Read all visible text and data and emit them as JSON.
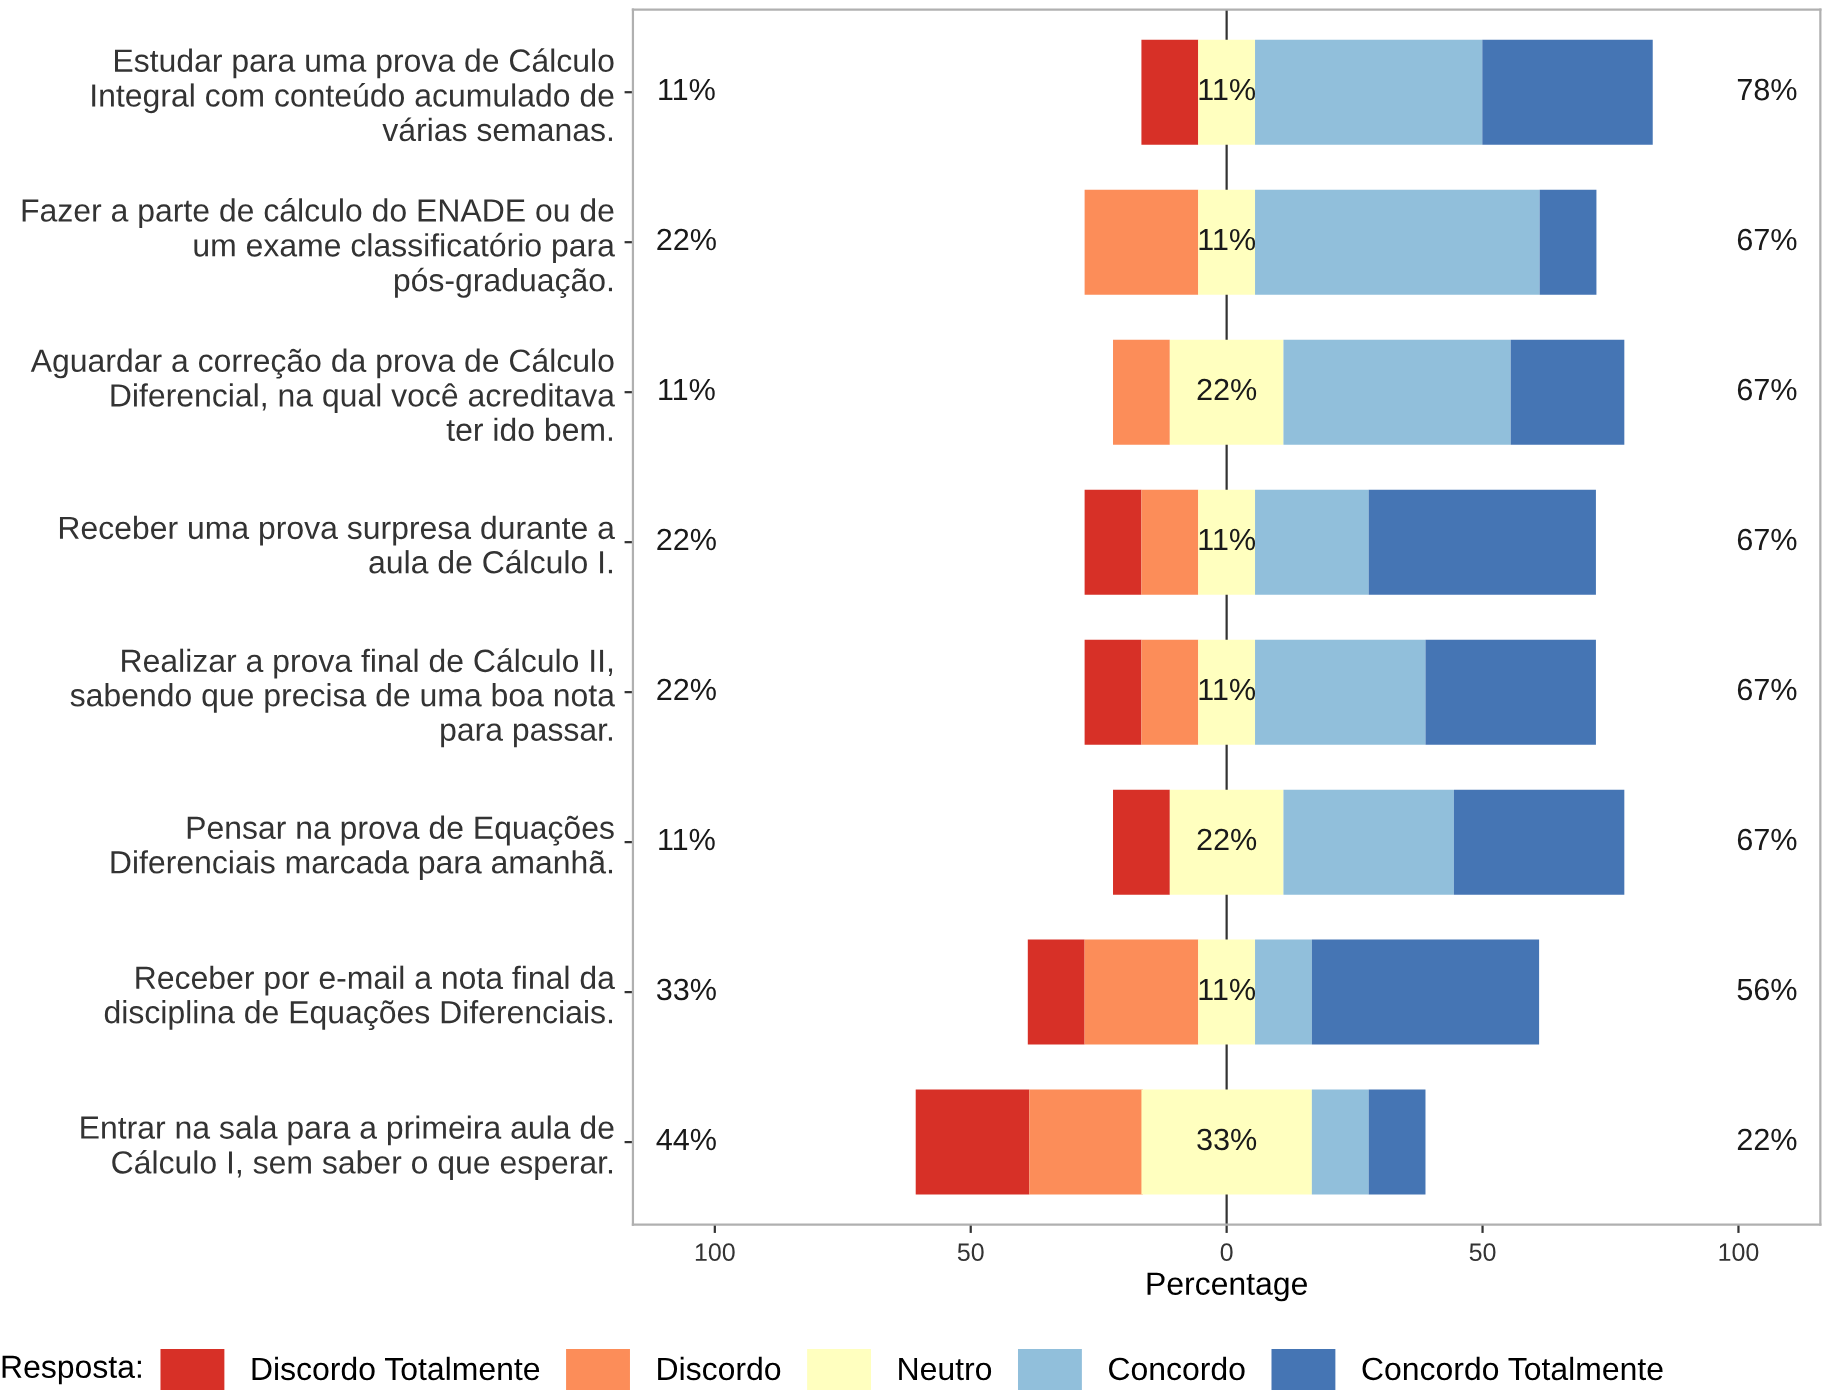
{
  "chart_data": {
    "type": "bar",
    "orientation": "horizontal",
    "stacked": true,
    "categories": [
      "Estudar para uma prova de Cálculo\nIntegral com conteúdo acumulado de\nvárias semanas.",
      "Fazer a parte de cálculo do ENADE ou de\num exame classificatório para\npós-graduação.",
      "Aguardar a correção da prova de Cálculo\nDiferencial, na qual você acreditava\nter ido bem.",
      "Receber uma prova surpresa durante a\naula de Cálculo I.",
      "Realizar a prova final de Cálculo II,\nsabendo que precisa de uma boa nota\npara passar.",
      "Pensar na prova de Equações\nDiferenciais marcada para amanhã.",
      "Receber por e-mail a nota final da\ndisciplina de Equações Diferenciais.",
      "Entrar na sala para a primeira aula de\nCálculo I, sem saber o que esperar."
    ],
    "series": [
      {
        "name": "Discordo Totalmente",
        "color": "#d73027",
        "values": [
          11.1,
          null,
          null,
          11.1,
          11.1,
          11.1,
          11.1,
          22.2
        ],
        "base": [
          -16.65,
          null,
          null,
          -27.75,
          -27.75,
          -22.2,
          -38.85,
          -60.75
        ]
      },
      {
        "name": "Discordo",
        "color": "#fc8d59",
        "values": [
          null,
          22.2,
          11.1,
          11.1,
          11.1,
          null,
          22.2,
          22.2
        ],
        "base": [
          null,
          -27.75,
          -22.2,
          -16.65,
          -16.65,
          null,
          -27.75,
          -38.55
        ]
      },
      {
        "name": "Neutro",
        "color": "#ffffbf",
        "values": [
          11.1,
          11.1,
          22.2,
          11.1,
          11.1,
          22.2,
          11.1,
          33.3
        ],
        "base": [
          -5.55,
          -5.55,
          -11.1,
          -5.55,
          -5.55,
          -11.1,
          -5.55,
          -16.65
        ],
        "value_labels": [
          "11%",
          "11%",
          "22%",
          "11%",
          "11%",
          "22%",
          "11%",
          "33%"
        ]
      },
      {
        "name": "Concordo",
        "color": "#91bfdb",
        "values": [
          44.4,
          55.6,
          44.4,
          22.2,
          33.3,
          33.3,
          11.1,
          11.1
        ],
        "base": [
          5.55,
          5.55,
          11.1,
          5.55,
          5.55,
          11.1,
          5.55,
          16.65
        ]
      },
      {
        "name": "Concordo Totalmente",
        "color": "#4575b4",
        "values": [
          33.3,
          11.1,
          22.2,
          44.4,
          33.3,
          33.3,
          44.4,
          11.1
        ],
        "base": [
          49.95,
          61.15,
          55.5,
          27.75,
          38.85,
          44.4,
          16.65,
          27.75
        ]
      }
    ],
    "xlim": [
      -116,
      116
    ],
    "xticks": [
      {
        "value": -100,
        "label": "100"
      },
      {
        "value": -50,
        "label": "50"
      },
      0,
      50,
      100
    ],
    "xlabel": "Percentage",
    "legend_title": "Resposta:",
    "legend": "bottom",
    "grid": false,
    "ref_lines": [
      {
        "axis": "x",
        "value": 0
      }
    ],
    "annotations": [
      "11%",
      "78%",
      "22%",
      "67%",
      "11%",
      "67%",
      "22%",
      "67%",
      "22%",
      "67%",
      "11%",
      "67%",
      "33%",
      "56%",
      "44%",
      "22%"
    ]
  }
}
